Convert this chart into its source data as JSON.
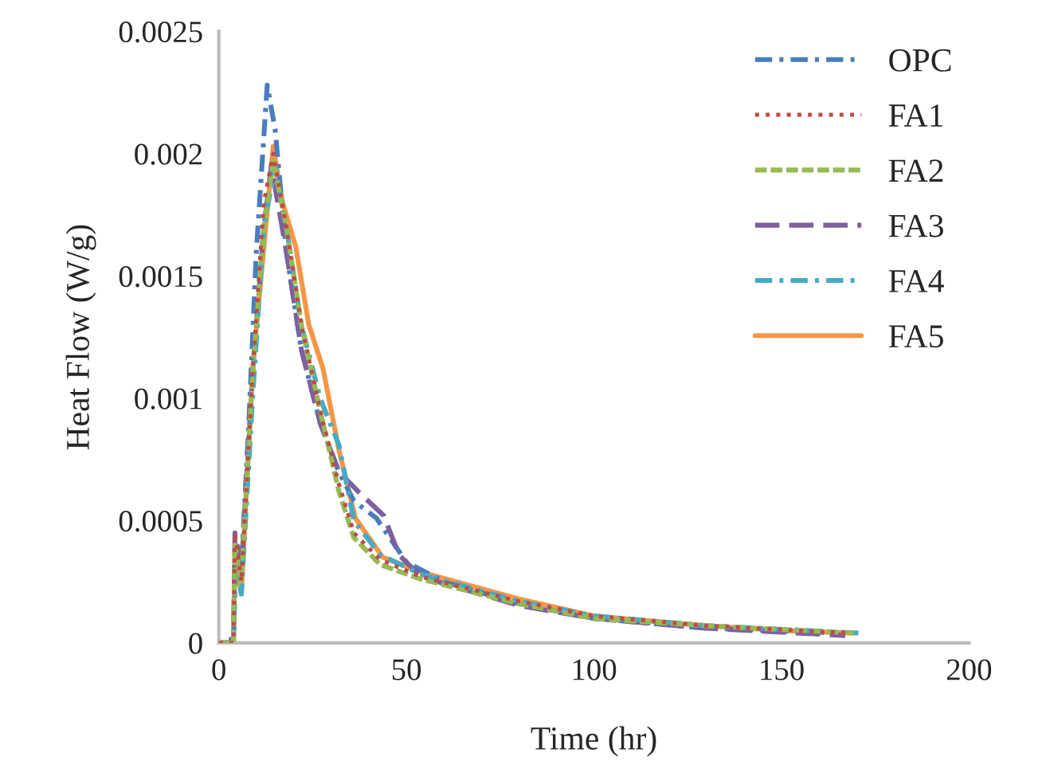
{
  "chart_data": {
    "type": "line",
    "xlabel": "Time (hr)",
    "ylabel": "Heat Flow (W/g)",
    "xlim": [
      0,
      200
    ],
    "xticks": [
      0,
      50,
      100,
      150,
      200
    ],
    "ylim": [
      0,
      0.0025
    ],
    "yticks": [
      {
        "value": 0,
        "label": "0"
      },
      {
        "value": 0.0005,
        "label": "0.0005"
      },
      {
        "value": 0.001,
        "label": "0.001"
      },
      {
        "value": 0.0015,
        "label": "0.0015"
      },
      {
        "value": 0.002,
        "label": "0.002"
      },
      {
        "value": 0.0025,
        "label": "0.0025"
      }
    ],
    "grid": false,
    "legend": "top right",
    "marker": "none",
    "series": [
      {
        "name": "OPC",
        "color": "#4a7ebb",
        "line_style": "dashed",
        "x": [
          0,
          3,
          4,
          4.5,
          6,
          8,
          10,
          12.9,
          15,
          18,
          22,
          27,
          32,
          36,
          42,
          50,
          60,
          80,
          100,
          130,
          165
        ],
        "values": [
          0,
          0,
          5e-05,
          0.0004,
          0.0003,
          0.0009,
          0.0016,
          0.00228,
          0.0021,
          0.0016,
          0.0012,
          0.0009,
          0.0007,
          0.00058,
          0.00051,
          0.00033,
          0.00025,
          0.00016,
          0.0001,
          6e-05,
          4e-05
        ]
      },
      {
        "name": "FA1",
        "color": "#be4b48",
        "line_style": "dotted",
        "x": [
          0,
          3.9,
          4.3,
          6,
          9,
          12,
          14.5,
          18,
          22,
          27,
          32,
          36,
          43,
          54,
          80,
          100,
          130,
          168
        ],
        "values": [
          0,
          0,
          0.00045,
          0.00025,
          0.0011,
          0.0018,
          0.002,
          0.0017,
          0.0013,
          0.00095,
          0.00065,
          0.00045,
          0.00034,
          0.00027,
          0.00017,
          0.00011,
          7e-05,
          4e-05
        ]
      },
      {
        "name": "FA2",
        "color": "#98b954",
        "line_style": "dashed",
        "x": [
          0,
          3.9,
          4.3,
          6,
          9,
          12,
          14.5,
          18,
          22,
          27,
          32,
          36,
          43,
          54,
          80,
          100,
          130,
          170
        ],
        "values": [
          0,
          0,
          0.0004,
          0.00025,
          0.0011,
          0.0017,
          0.00197,
          0.0017,
          0.0013,
          0.00095,
          0.00062,
          0.00043,
          0.00032,
          0.00026,
          0.00016,
          0.0001,
          7e-05,
          4e-05
        ]
      },
      {
        "name": "FA3",
        "color": "#7d60a0",
        "line_style": "dashed",
        "x": [
          0,
          3.9,
          4.3,
          6,
          9,
          12,
          14,
          18,
          22,
          27,
          32,
          37.7,
          44,
          48,
          54,
          80,
          100,
          130,
          167
        ],
        "values": [
          0,
          0,
          0.00045,
          0.0003,
          0.0011,
          0.0017,
          0.00195,
          0.0016,
          0.0012,
          0.0009,
          0.0007,
          0.00061,
          0.00052,
          0.00036,
          0.00027,
          0.000153,
          0.0001,
          6e-05,
          3e-05
        ]
      },
      {
        "name": "FA4",
        "color": "#46aac5",
        "line_style": "dashed",
        "x": [
          0,
          3.9,
          4.5,
          6,
          9,
          12,
          15,
          18,
          22,
          27,
          32,
          36,
          43,
          54,
          80,
          100,
          130,
          171
        ],
        "values": [
          0,
          0,
          0.0003,
          0.0002,
          0.001,
          0.0017,
          0.00195,
          0.0017,
          0.0013,
          0.001,
          0.00081,
          0.0005,
          0.00036,
          0.00028,
          0.00017,
          0.00011,
          7e-05,
          4e-05
        ]
      },
      {
        "name": "FA5",
        "color": "#f79646",
        "line_style": "solid",
        "x": [
          0,
          3.9,
          4.3,
          6,
          9,
          14.5,
          17,
          20.5,
          24,
          27.8,
          32,
          36.4,
          43.7,
          53.8,
          80,
          100,
          130,
          150,
          169
        ],
        "values": [
          0,
          0,
          0.00038,
          0.0002,
          0.00112,
          0.00203,
          0.0018,
          0.00162,
          0.0013,
          0.00112,
          0.00079,
          0.00051,
          0.00035,
          0.00029,
          0.00018,
          0.00011,
          7e-05,
          5e-05,
          4e-05
        ]
      }
    ]
  }
}
